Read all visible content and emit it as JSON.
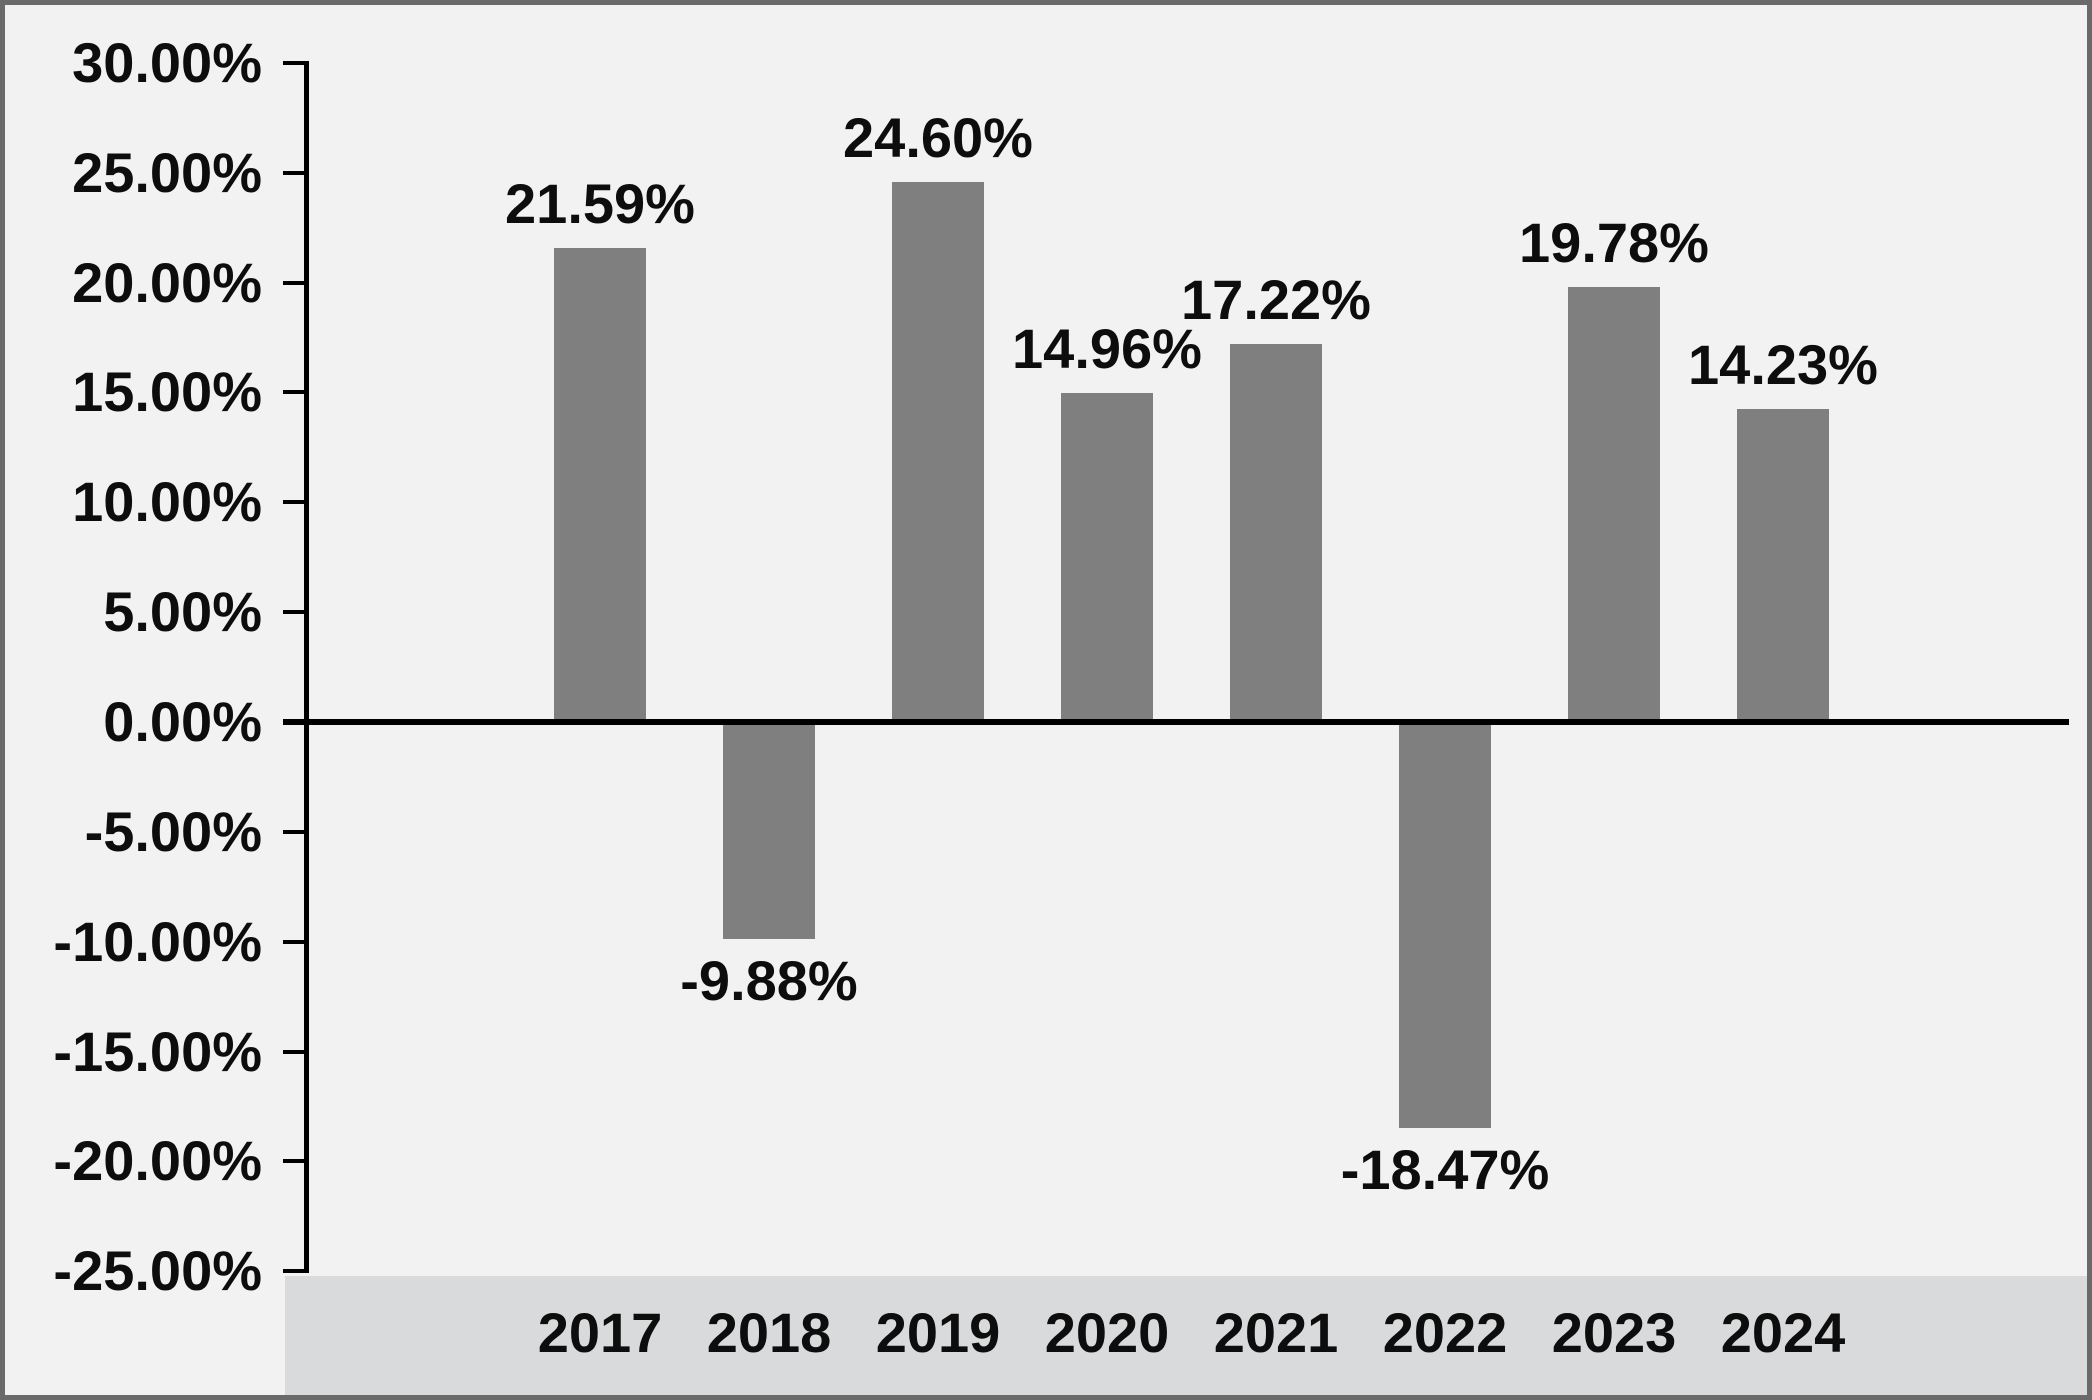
{
  "chart_data": {
    "type": "bar",
    "title": "",
    "xlabel": "",
    "ylabel": "",
    "categories": [
      "2017",
      "2018",
      "2019",
      "2020",
      "2021",
      "2022",
      "2023",
      "2024"
    ],
    "values": [
      21.59,
      -9.88,
      24.6,
      14.96,
      17.22,
      -18.47,
      19.78,
      14.23
    ],
    "bar_labels": [
      "21.59%",
      "-9.88%",
      "24.60%",
      "14.96%",
      "17.22%",
      "-18.47%",
      "19.78%",
      "14.23%"
    ],
    "ylim": [
      -25,
      30
    ],
    "ytick_step": 5,
    "yticks": [
      {
        "value": 30,
        "label": "30.00%"
      },
      {
        "value": 25,
        "label": "25.00%"
      },
      {
        "value": 20,
        "label": "20.00%"
      },
      {
        "value": 15,
        "label": "15.00%"
      },
      {
        "value": 10,
        "label": "10.00%"
      },
      {
        "value": 5,
        "label": "5.00%"
      },
      {
        "value": 0,
        "label": "0.00%"
      },
      {
        "value": -5,
        "label": "-5.00%"
      },
      {
        "value": -10,
        "label": "-10.00%"
      },
      {
        "value": -15,
        "label": "-15.00%"
      },
      {
        "value": -20,
        "label": "-20.00%"
      },
      {
        "value": -25,
        "label": "-25.00%"
      }
    ],
    "grid": false,
    "legend": null,
    "layout_hints": {
      "value_labels": "outside-end",
      "category_labels_in_band": true
    },
    "colors": {
      "bar": "#7f7f7f",
      "plot_background": "#f1f2f1",
      "category_band": "#d9dadb",
      "axis": "#000000",
      "text": "#0d0d0d",
      "frame_border": "#6a6a6a"
    }
  }
}
